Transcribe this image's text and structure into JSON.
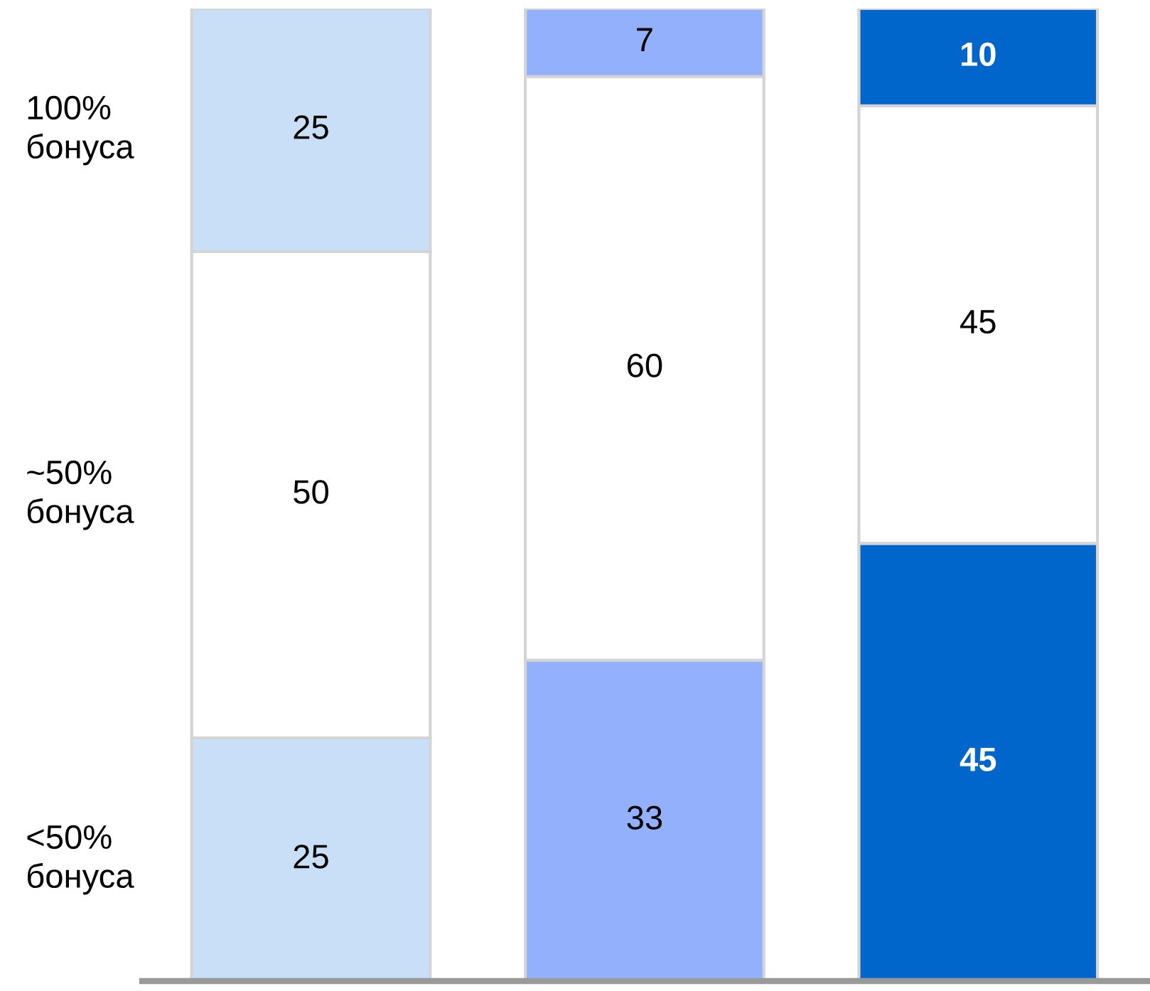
{
  "chart_data": {
    "type": "bar",
    "stacked": true,
    "data_labels": true,
    "categories": [
      null,
      null,
      null
    ],
    "series": [
      {
        "name": "<50%\nбонуса",
        "colors": [
          "#c9dff7",
          "#92b0fb",
          "#0066cc"
        ],
        "values": [
          25,
          33,
          45
        ]
      },
      {
        "name": "~50%\nбонуса",
        "colors": [
          "#ffffff",
          "#ffffff",
          "#ffffff"
        ],
        "values": [
          50,
          60,
          45
        ]
      },
      {
        "name": "100%\nбонуса",
        "colors": [
          "#c9dff7",
          "#92b0fb",
          "#0066cc"
        ],
        "values": [
          25,
          7,
          10
        ]
      }
    ]
  }
}
